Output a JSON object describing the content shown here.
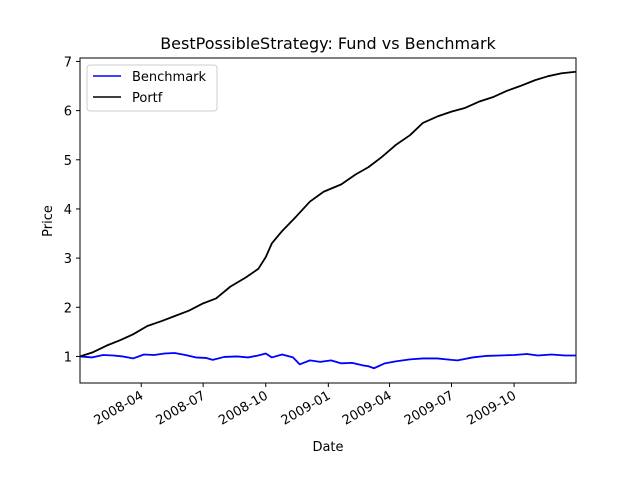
{
  "chart_data": {
    "type": "line",
    "title": "BestPossibleStrategy: Fund vs Benchmark",
    "xlabel": "Date",
    "ylabel": "Price",
    "xlim": [
      "2008-01-02",
      "2009-12-31"
    ],
    "ylim": [
      0.46,
      7.07
    ],
    "x_ticks": [
      "2008-04",
      "2008-07",
      "2008-10",
      "2009-01",
      "2009-04",
      "2009-07",
      "2009-10"
    ],
    "y_ticks": [
      1,
      2,
      3,
      4,
      5,
      6,
      7
    ],
    "grid": false,
    "legend_position": "upper-left",
    "series": [
      {
        "name": "Benchmark",
        "color": "#0000ff",
        "points": [
          [
            "2008-01-02",
            1.0
          ],
          [
            "2008-01-20",
            0.98
          ],
          [
            "2008-02-05",
            1.03
          ],
          [
            "2008-02-20",
            1.02
          ],
          [
            "2008-03-05",
            1.0
          ],
          [
            "2008-03-20",
            0.96
          ],
          [
            "2008-04-05",
            1.04
          ],
          [
            "2008-04-20",
            1.03
          ],
          [
            "2008-05-05",
            1.06
          ],
          [
            "2008-05-20",
            1.07
          ],
          [
            "2008-06-05",
            1.03
          ],
          [
            "2008-06-20",
            0.98
          ],
          [
            "2008-07-05",
            0.97
          ],
          [
            "2008-07-15",
            0.93
          ],
          [
            "2008-08-01",
            0.99
          ],
          [
            "2008-08-20",
            1.0
          ],
          [
            "2008-09-05",
            0.98
          ],
          [
            "2008-09-20",
            1.02
          ],
          [
            "2008-10-01",
            1.06
          ],
          [
            "2008-10-10",
            0.98
          ],
          [
            "2008-10-25",
            1.04
          ],
          [
            "2008-11-10",
            0.98
          ],
          [
            "2008-11-20",
            0.84
          ],
          [
            "2008-12-05",
            0.92
          ],
          [
            "2008-12-20",
            0.89
          ],
          [
            "2009-01-05",
            0.92
          ],
          [
            "2009-01-20",
            0.86
          ],
          [
            "2009-02-05",
            0.87
          ],
          [
            "2009-02-20",
            0.82
          ],
          [
            "2009-03-01",
            0.8
          ],
          [
            "2009-03-09",
            0.76
          ],
          [
            "2009-03-25",
            0.86
          ],
          [
            "2009-04-10",
            0.9
          ],
          [
            "2009-05-01",
            0.94
          ],
          [
            "2009-05-20",
            0.96
          ],
          [
            "2009-06-10",
            0.96
          ],
          [
            "2009-07-01",
            0.93
          ],
          [
            "2009-07-10",
            0.92
          ],
          [
            "2009-08-01",
            0.98
          ],
          [
            "2009-08-20",
            1.01
          ],
          [
            "2009-09-10",
            1.02
          ],
          [
            "2009-10-01",
            1.03
          ],
          [
            "2009-10-20",
            1.05
          ],
          [
            "2009-11-05",
            1.02
          ],
          [
            "2009-11-25",
            1.04
          ],
          [
            "2009-12-15",
            1.02
          ],
          [
            "2009-12-31",
            1.02
          ]
        ]
      },
      {
        "name": "Portf",
        "color": "#000000",
        "points": [
          [
            "2008-01-02",
            1.0
          ],
          [
            "2008-01-20",
            1.08
          ],
          [
            "2008-02-10",
            1.22
          ],
          [
            "2008-03-01",
            1.33
          ],
          [
            "2008-03-20",
            1.45
          ],
          [
            "2008-04-10",
            1.62
          ],
          [
            "2008-05-01",
            1.72
          ],
          [
            "2008-05-20",
            1.82
          ],
          [
            "2008-06-10",
            1.93
          ],
          [
            "2008-07-01",
            2.08
          ],
          [
            "2008-07-20",
            2.18
          ],
          [
            "2008-08-10",
            2.42
          ],
          [
            "2008-09-01",
            2.6
          ],
          [
            "2008-09-20",
            2.78
          ],
          [
            "2008-10-01",
            3.02
          ],
          [
            "2008-10-10",
            3.3
          ],
          [
            "2008-10-25",
            3.55
          ],
          [
            "2008-11-15",
            3.85
          ],
          [
            "2008-12-05",
            4.15
          ],
          [
            "2008-12-25",
            4.35
          ],
          [
            "2009-01-20",
            4.5
          ],
          [
            "2009-02-10",
            4.7
          ],
          [
            "2009-03-01",
            4.85
          ],
          [
            "2009-03-20",
            5.05
          ],
          [
            "2009-04-10",
            5.3
          ],
          [
            "2009-05-01",
            5.5
          ],
          [
            "2009-05-20",
            5.75
          ],
          [
            "2009-06-10",
            5.88
          ],
          [
            "2009-07-01",
            5.98
          ],
          [
            "2009-07-20",
            6.05
          ],
          [
            "2009-08-10",
            6.18
          ],
          [
            "2009-09-01",
            6.28
          ],
          [
            "2009-09-20",
            6.4
          ],
          [
            "2009-10-10",
            6.5
          ],
          [
            "2009-11-01",
            6.62
          ],
          [
            "2009-11-20",
            6.7
          ],
          [
            "2009-12-10",
            6.76
          ],
          [
            "2009-12-31",
            6.79
          ]
        ]
      }
    ]
  }
}
